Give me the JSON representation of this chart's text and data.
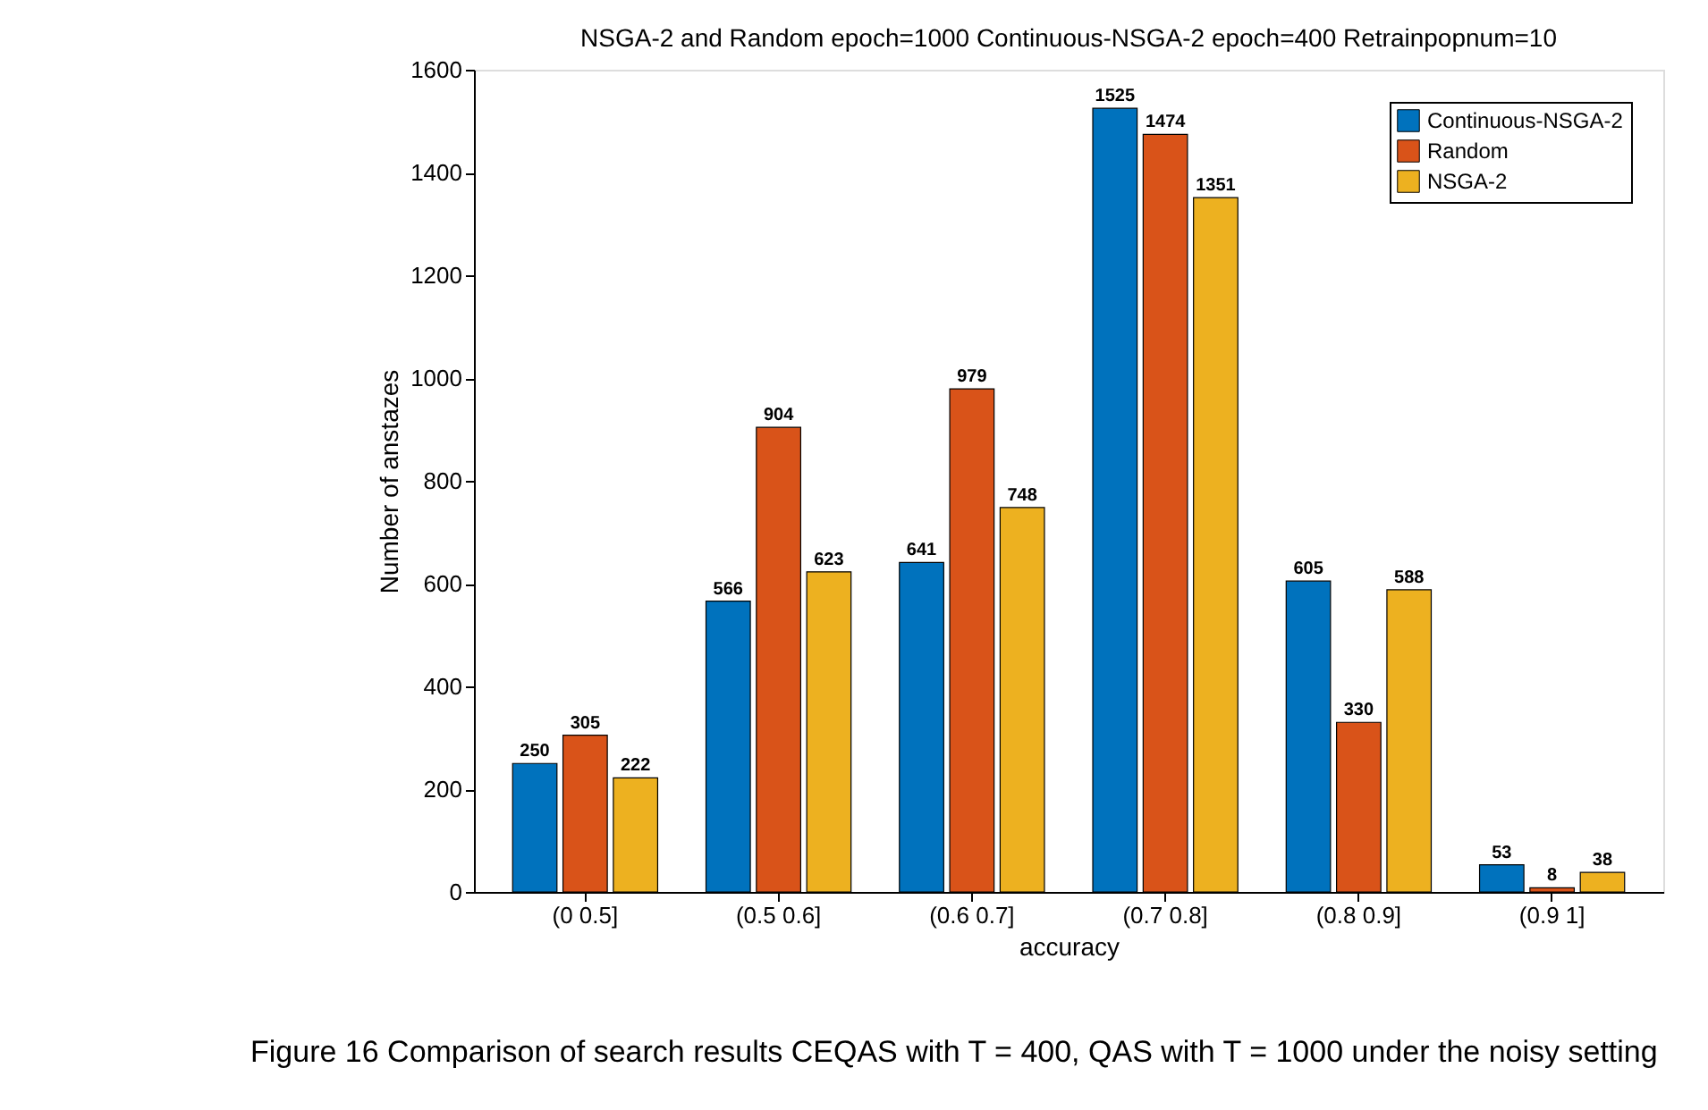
{
  "chart_data": {
    "type": "bar",
    "title": "NSGA-2 and Random epoch=1000 Continuous-NSGA-2 epoch=400 Retrainpopnum=10",
    "xlabel": "accuracy",
    "ylabel": "Number of anstazes",
    "categories": [
      "(0 0.5]",
      "(0.5 0.6]",
      "(0.6 0.7]",
      "(0.7 0.8]",
      "(0.8 0.9]",
      "(0.9 1]"
    ],
    "series": [
      {
        "name": "Continuous-NSGA-2",
        "color": "#0072bd",
        "values": [
          250,
          566,
          641,
          1525,
          605,
          53
        ]
      },
      {
        "name": "Random",
        "color": "#d95319",
        "values": [
          305,
          904,
          979,
          1474,
          330,
          8
        ]
      },
      {
        "name": "NSGA-2",
        "color": "#edb120",
        "values": [
          222,
          623,
          748,
          1351,
          588,
          38
        ]
      }
    ],
    "ylim": [
      0,
      1600
    ],
    "yticks": [
      0,
      200,
      400,
      600,
      800,
      1000,
      1200,
      1400,
      1600
    ],
    "data_labels": true,
    "legend": "top right",
    "grid": false,
    "annotations": [
      "Figure 16  Comparison of search results CEQAS with T = 400, QAS with T = 1000 under the noisy setting"
    ]
  }
}
